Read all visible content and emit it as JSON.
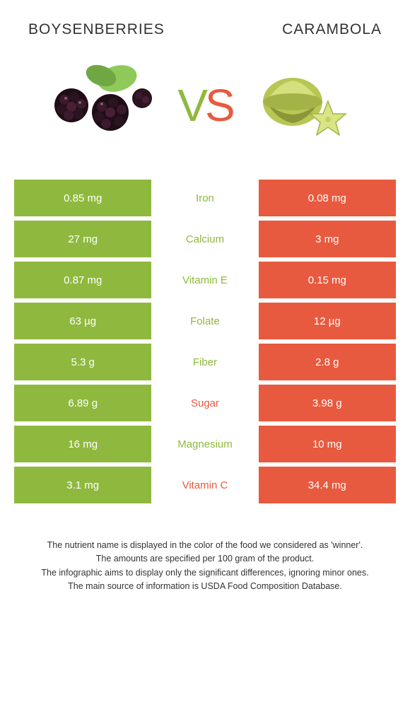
{
  "header": {
    "left_title": "Boysenberries",
    "right_title": "Carambola"
  },
  "vs": {
    "v": "V",
    "s": "S"
  },
  "colors": {
    "green": "#8fb93e",
    "red": "#e85a3f",
    "green_text": "#8fb93e",
    "red_text": "#e85a3f",
    "berry_dark": "#2a1420",
    "berry_mid": "#4a1f35",
    "berry_hi": "#6b2e48",
    "leaf": "#7ab84a",
    "carambola_body": "#b8c654",
    "carambola_dark": "#8a9638",
    "carambola_light": "#d4df7e"
  },
  "rows": [
    {
      "left": "0.85 mg",
      "label": "Iron",
      "right": "0.08 mg",
      "winner": "left"
    },
    {
      "left": "27 mg",
      "label": "Calcium",
      "right": "3 mg",
      "winner": "left"
    },
    {
      "left": "0.87 mg",
      "label": "Vitamin E",
      "right": "0.15 mg",
      "winner": "left"
    },
    {
      "left": "63 µg",
      "label": "Folate",
      "right": "12 µg",
      "winner": "left"
    },
    {
      "left": "5.3 g",
      "label": "Fiber",
      "right": "2.8 g",
      "winner": "left"
    },
    {
      "left": "6.89 g",
      "label": "Sugar",
      "right": "3.98 g",
      "winner": "right"
    },
    {
      "left": "16 mg",
      "label": "Magnesium",
      "right": "10 mg",
      "winner": "left"
    },
    {
      "left": "3.1 mg",
      "label": "Vitamin C",
      "right": "34.4 mg",
      "winner": "right"
    }
  ],
  "footer": {
    "line1": "The nutrient name is displayed in the color of the food we considered as 'winner'.",
    "line2": "The amounts are specified per 100 gram of the product.",
    "line3": "The infographic aims to display only the significant differences, ignoring minor ones.",
    "line4": "The main source of information is USDA Food Composition Database."
  }
}
